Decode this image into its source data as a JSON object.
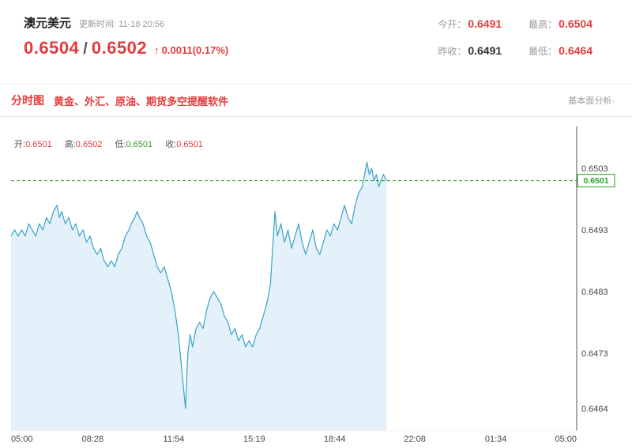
{
  "header": {
    "title": "澳元美元",
    "update_time": "更新时间: 11-18 20:56",
    "bid": "0.6504",
    "slash": "/",
    "ask": "0.6502",
    "arrow": "↑",
    "change": "0.0011(0.17%)",
    "stats": [
      {
        "label": "今开：",
        "value": "0.6491",
        "color": "#e23c3c"
      },
      {
        "label": "最高：",
        "value": "0.6504",
        "color": "#e23c3c"
      },
      {
        "label": "昨收：",
        "value": "0.6491",
        "color": "#333333"
      },
      {
        "label": "最低：",
        "value": "0.6464",
        "color": "#e23c3c"
      }
    ]
  },
  "tabbar": {
    "tab": "分时图",
    "promo": "黄金、外汇、原油、期货多空提醒软件",
    "right_link": "基本面分析·"
  },
  "colors": {
    "accent_red": "#e23c3c",
    "accent_green": "#2aa22a",
    "line": "#3aa3c8",
    "fill": "#e4f1fa"
  },
  "chart_data": {
    "type": "line",
    "title": "分时图 (AUD/USD intraday)",
    "xlabel": "",
    "ylabel": "",
    "legend": [
      {
        "label": "开:",
        "value": "0.6501",
        "color": "#e23c3c"
      },
      {
        "label": "高:",
        "value": "0.6502",
        "color": "#e23c3c"
      },
      {
        "label": "低:",
        "value": "0.6501",
        "color": "#2aa22a"
      },
      {
        "label": "收:",
        "value": "0.6501",
        "color": "#e23c3c"
      }
    ],
    "current_price": 0.6501,
    "y_range": [
      0.6464,
      0.6503
    ],
    "x_range_hours": [
      0,
      24
    ],
    "y_ticks": [
      0.6503,
      0.6493,
      0.6483,
      0.6473,
      0.6464
    ],
    "x_ticks": [
      {
        "label": "05:00",
        "hour": 0
      },
      {
        "label": "08:28",
        "hour": 3.4667
      },
      {
        "label": "11:54",
        "hour": 6.9
      },
      {
        "label": "15:19",
        "hour": 10.3167
      },
      {
        "label": "18:44",
        "hour": 13.7333
      },
      {
        "label": "22:08",
        "hour": 17.1333
      },
      {
        "label": "01:34",
        "hour": 20.5667
      },
      {
        "label": "05:00",
        "hour": 24
      }
    ],
    "line_color": "#3aa3c8",
    "fill_color": "#e4f1fa",
    "dash_color": "#2aa22a",
    "series": [
      {
        "name": "AUDUSD",
        "points": [
          [
            0,
            0.6492
          ],
          [
            0.15,
            0.6493
          ],
          [
            0.3,
            0.6492
          ],
          [
            0.45,
            0.6493
          ],
          [
            0.6,
            0.6492
          ],
          [
            0.75,
            0.6494
          ],
          [
            0.9,
            0.6493
          ],
          [
            1.05,
            0.6492
          ],
          [
            1.2,
            0.6494
          ],
          [
            1.35,
            0.6493
          ],
          [
            1.5,
            0.6495
          ],
          [
            1.65,
            0.6494
          ],
          [
            1.8,
            0.6496
          ],
          [
            1.95,
            0.6497
          ],
          [
            2.05,
            0.6495
          ],
          [
            2.15,
            0.6496
          ],
          [
            2.3,
            0.6494
          ],
          [
            2.45,
            0.6495
          ],
          [
            2.6,
            0.6493
          ],
          [
            2.75,
            0.6494
          ],
          [
            2.9,
            0.6492
          ],
          [
            3.05,
            0.6493
          ],
          [
            3.2,
            0.6491
          ],
          [
            3.35,
            0.6492
          ],
          [
            3.5,
            0.649
          ],
          [
            3.65,
            0.6489
          ],
          [
            3.8,
            0.649
          ],
          [
            3.95,
            0.6488
          ],
          [
            4.1,
            0.6487
          ],
          [
            4.25,
            0.6488
          ],
          [
            4.4,
            0.6487
          ],
          [
            4.55,
            0.6489
          ],
          [
            4.7,
            0.649
          ],
          [
            4.85,
            0.6492
          ],
          [
            5,
            0.6493
          ],
          [
            5.1,
            0.6494
          ],
          [
            5.25,
            0.6495
          ],
          [
            5.35,
            0.6496
          ],
          [
            5.45,
            0.6495
          ],
          [
            5.6,
            0.6494
          ],
          [
            5.75,
            0.6492
          ],
          [
            5.9,
            0.6491
          ],
          [
            6.05,
            0.6489
          ],
          [
            6.2,
            0.6487
          ],
          [
            6.35,
            0.6486
          ],
          [
            6.5,
            0.6487
          ],
          [
            6.65,
            0.6485
          ],
          [
            6.8,
            0.6483
          ],
          [
            6.95,
            0.648
          ],
          [
            7.1,
            0.6476
          ],
          [
            7.2,
            0.6472
          ],
          [
            7.3,
            0.6468
          ],
          [
            7.4,
            0.6464
          ],
          [
            7.5,
            0.6473
          ],
          [
            7.6,
            0.6476
          ],
          [
            7.7,
            0.6474
          ],
          [
            7.85,
            0.6477
          ],
          [
            8,
            0.6478
          ],
          [
            8.15,
            0.6477
          ],
          [
            8.3,
            0.648
          ],
          [
            8.45,
            0.6482
          ],
          [
            8.6,
            0.6483
          ],
          [
            8.75,
            0.6482
          ],
          [
            8.9,
            0.6481
          ],
          [
            9.05,
            0.6479
          ],
          [
            9.2,
            0.6478
          ],
          [
            9.35,
            0.6476
          ],
          [
            9.5,
            0.6477
          ],
          [
            9.65,
            0.6475
          ],
          [
            9.8,
            0.6476
          ],
          [
            9.95,
            0.6474
          ],
          [
            10.1,
            0.6475
          ],
          [
            10.25,
            0.6474
          ],
          [
            10.4,
            0.6476
          ],
          [
            10.55,
            0.6477
          ],
          [
            10.7,
            0.6479
          ],
          [
            10.85,
            0.6481
          ],
          [
            11,
            0.6484
          ],
          [
            11.1,
            0.649
          ],
          [
            11.2,
            0.6496
          ],
          [
            11.3,
            0.6492
          ],
          [
            11.45,
            0.6494
          ],
          [
            11.6,
            0.6491
          ],
          [
            11.75,
            0.6493
          ],
          [
            11.9,
            0.649
          ],
          [
            12.05,
            0.6492
          ],
          [
            12.2,
            0.6494
          ],
          [
            12.35,
            0.6491
          ],
          [
            12.5,
            0.6489
          ],
          [
            12.65,
            0.6491
          ],
          [
            12.8,
            0.6493
          ],
          [
            12.95,
            0.649
          ],
          [
            13.1,
            0.6489
          ],
          [
            13.25,
            0.6491
          ],
          [
            13.4,
            0.6493
          ],
          [
            13.55,
            0.6492
          ],
          [
            13.7,
            0.6494
          ],
          [
            13.85,
            0.6493
          ],
          [
            14,
            0.6495
          ],
          [
            14.15,
            0.6497
          ],
          [
            14.3,
            0.6495
          ],
          [
            14.45,
            0.6494
          ],
          [
            14.6,
            0.6497
          ],
          [
            14.75,
            0.6499
          ],
          [
            14.9,
            0.65
          ],
          [
            15,
            0.6502
          ],
          [
            15.1,
            0.6504
          ],
          [
            15.2,
            0.6502
          ],
          [
            15.3,
            0.6503
          ],
          [
            15.4,
            0.6501
          ],
          [
            15.5,
            0.6502
          ],
          [
            15.6,
            0.65
          ],
          [
            15.7,
            0.6501
          ],
          [
            15.8,
            0.6502
          ],
          [
            15.93,
            0.6501
          ]
        ]
      }
    ]
  }
}
